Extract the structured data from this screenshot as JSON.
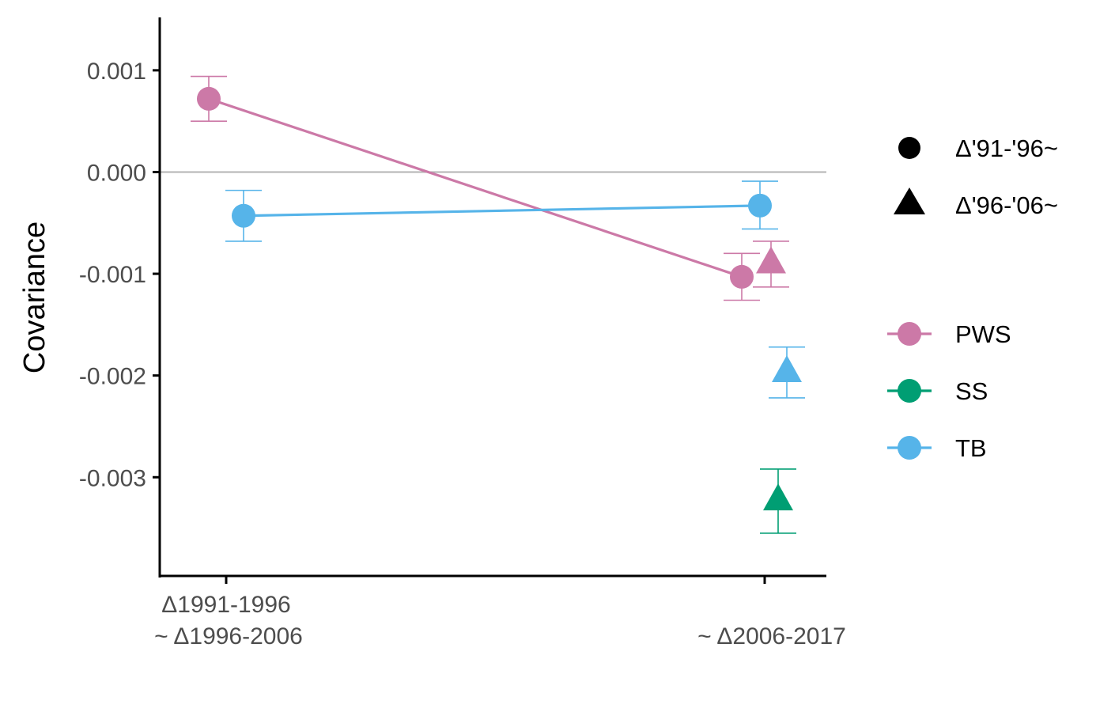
{
  "chart_data": {
    "type": "scatter",
    "title": "",
    "xlabel": "",
    "ylabel": "Covariance",
    "x_categories": [
      [
        "Δ1991-1996",
        "~ Δ1996-2006"
      ],
      [
        "",
        "~ Δ2006-2017"
      ]
    ],
    "y_ticks": [
      {
        "value": 0.001,
        "label": "0.001"
      },
      {
        "value": 0.0,
        "label": "0.000"
      },
      {
        "value": -0.001,
        "label": "-0.001"
      },
      {
        "value": -0.002,
        "label": "-0.002"
      },
      {
        "value": -0.003,
        "label": "-0.003"
      }
    ],
    "ylim": [
      -0.00397,
      0.00152
    ],
    "reference_line_y": 0,
    "grid": false,
    "legend_position": "right",
    "shape_legend": [
      {
        "label": "Δ'91-'96~",
        "shape": "circle"
      },
      {
        "label": "Δ'96-'06~",
        "shape": "triangle"
      }
    ],
    "series": [
      {
        "name": "PWS",
        "color": "#cc79a7",
        "line_points": [
          0,
          1
        ],
        "points": [
          {
            "category": 0,
            "shape": "circle",
            "y": 0.00072,
            "ymin": 0.0005,
            "ymax": 0.00094
          },
          {
            "category": 1,
            "shape": "circle",
            "y": -0.00103,
            "ymin": -0.00126,
            "ymax": -0.0008
          },
          {
            "category": 1,
            "shape": "triangle",
            "y": -0.0009,
            "ymin": -0.00113,
            "ymax": -0.00068
          }
        ]
      },
      {
        "name": "SS",
        "color": "#009e73",
        "line_points": [],
        "points": [
          {
            "category": 1,
            "shape": "triangle",
            "y": -0.00323,
            "ymin": -0.00355,
            "ymax": -0.00292
          }
        ]
      },
      {
        "name": "TB",
        "color": "#56b4e9",
        "line_points": [
          0,
          1
        ],
        "points": [
          {
            "category": 0,
            "shape": "circle",
            "y": -0.00043,
            "ymin": -0.00068,
            "ymax": -0.00018
          },
          {
            "category": 1,
            "shape": "circle",
            "y": -0.00033,
            "ymin": -0.00056,
            "ymax": -9e-05
          },
          {
            "category": 1,
            "shape": "triangle",
            "y": -0.00197,
            "ymin": -0.00222,
            "ymax": -0.00172
          }
        ]
      }
    ]
  }
}
